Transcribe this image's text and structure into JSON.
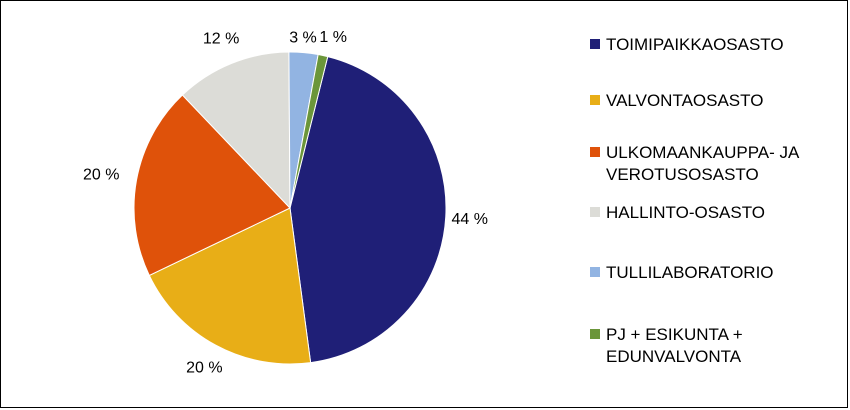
{
  "chart_data": {
    "type": "pie",
    "title": "",
    "slices": [
      {
        "label": "TOIMIPAIKKAOSASTO",
        "value": 44,
        "value_label": "44 %",
        "color": "#1f1f77"
      },
      {
        "label": "VALVONTAOSASTO",
        "value": 20,
        "value_label": "20 %",
        "color": "#e8ae17"
      },
      {
        "label": "ULKOMAANKAUPPA- JA VEROTUSOSASTO",
        "value": 20,
        "value_label": "20 %",
        "color": "#df520a"
      },
      {
        "label": "HALLINTO-OSASTO",
        "value": 12,
        "value_label": "12 %",
        "color": "#dcdcd7"
      },
      {
        "label": "TULLILABORATORIO",
        "value": 3,
        "value_label": "3 %",
        "color": "#92b4e2"
      },
      {
        "label": "PJ + ESIKUNTA + EDUNVALVONTA",
        "value": 1,
        "value_label": "1 %",
        "color": "#6b963a"
      }
    ],
    "start_angle_deg": 14,
    "direction": "clockwise",
    "legend_position": "right"
  }
}
